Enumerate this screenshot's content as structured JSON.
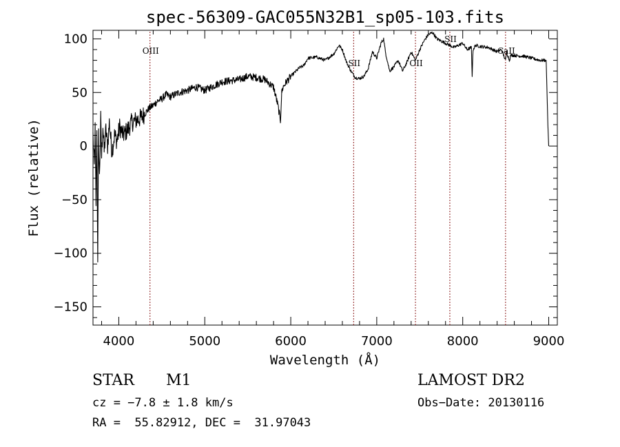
{
  "chart_data": {
    "type": "line",
    "title": "spec-56309-GAC055N32B1_sp05-103.fits",
    "xlabel": "Wavelength (Å)",
    "ylabel": "Flux (relative)",
    "xlim": [
      3700,
      9100
    ],
    "ylim": [
      -167,
      108
    ],
    "xticks": [
      4000,
      5000,
      6000,
      7000,
      8000,
      9000
    ],
    "xtick_labels": [
      "4000",
      "5000",
      "6000",
      "7000",
      "8000",
      "9000"
    ],
    "yticks": [
      100,
      50,
      0,
      -50,
      -100,
      -150
    ],
    "ytick_labels": [
      "100",
      "50",
      "0",
      "−50",
      "−100",
      "−150"
    ],
    "grid": false,
    "line_color": "#000000",
    "marker_color": "#8b1a1a",
    "spectral_lines": [
      {
        "name": "OIII",
        "wavelength": 4363
      },
      {
        "name": "SII",
        "wavelength": 6731
      },
      {
        "name": "OII",
        "wavelength": 7450
      },
      {
        "name": "SII",
        "wavelength": 7850
      },
      {
        "name": "CaII",
        "wavelength": 8498
      }
    ],
    "series": [
      {
        "x": [
          3700,
          3715,
          3725,
          3735,
          3745,
          3755,
          3765,
          3775,
          3790,
          3800,
          3815,
          3830,
          3850,
          3870,
          3890,
          3920,
          3950,
          3980,
          4010,
          4050,
          4100,
          4150,
          4200,
          4250,
          4300,
          4350,
          4400,
          4450,
          4500,
          4550,
          4600,
          4700,
          4800,
          4900,
          5000,
          5100,
          5200,
          5300,
          5400,
          5500,
          5600,
          5700,
          5800,
          5850,
          5880,
          5895,
          5910,
          5950,
          6000,
          6100,
          6150,
          6200,
          6300,
          6400,
          6500,
          6560,
          6600,
          6650,
          6700,
          6750,
          6800,
          6850,
          6900,
          6950,
          7000,
          7050,
          7080,
          7100,
          7150,
          7200,
          7250,
          7300,
          7350,
          7400,
          7450,
          7500,
          7550,
          7600,
          7650,
          7700,
          7800,
          7900,
          8000,
          8050,
          8100,
          8110,
          8120,
          8150,
          8200,
          8300,
          8400,
          8450,
          8498,
          8510,
          8542,
          8560,
          8662,
          8700,
          8800,
          8900,
          8970,
          8990,
          9000
        ],
        "y": [
          10,
          -20,
          15,
          -60,
          20,
          -103,
          10,
          -30,
          25,
          -10,
          20,
          -5,
          15,
          0,
          22,
          -5,
          10,
          5,
          18,
          10,
          15,
          22,
          24,
          26,
          30,
          35,
          38,
          42,
          44,
          48,
          46,
          50,
          52,
          55,
          52,
          56,
          60,
          61,
          62,
          65,
          64,
          62,
          55,
          38,
          24,
          50,
          55,
          60,
          65,
          73,
          75,
          82,
          83,
          80,
          86,
          94,
          90,
          78,
          70,
          64,
          63,
          65,
          72,
          88,
          82,
          96,
          100,
          88,
          70,
          74,
          80,
          70,
          78,
          88,
          80,
          90,
          98,
          104,
          106,
          100,
          96,
          92,
          96,
          90,
          92,
          66,
          90,
          94,
          93,
          92,
          88,
          90,
          80,
          88,
          80,
          85,
          84,
          84,
          82,
          80,
          80,
          20,
          0
        ]
      }
    ]
  },
  "info": {
    "object_class": "STAR",
    "subclass": "M1",
    "survey": "LAMOST DR2",
    "redshift": "cz = −7.8 ± 1.8 km/s",
    "obs_date": "Obs−Date: 20130116",
    "coords": "RA =  55.82912, DEC =  31.97043"
  }
}
